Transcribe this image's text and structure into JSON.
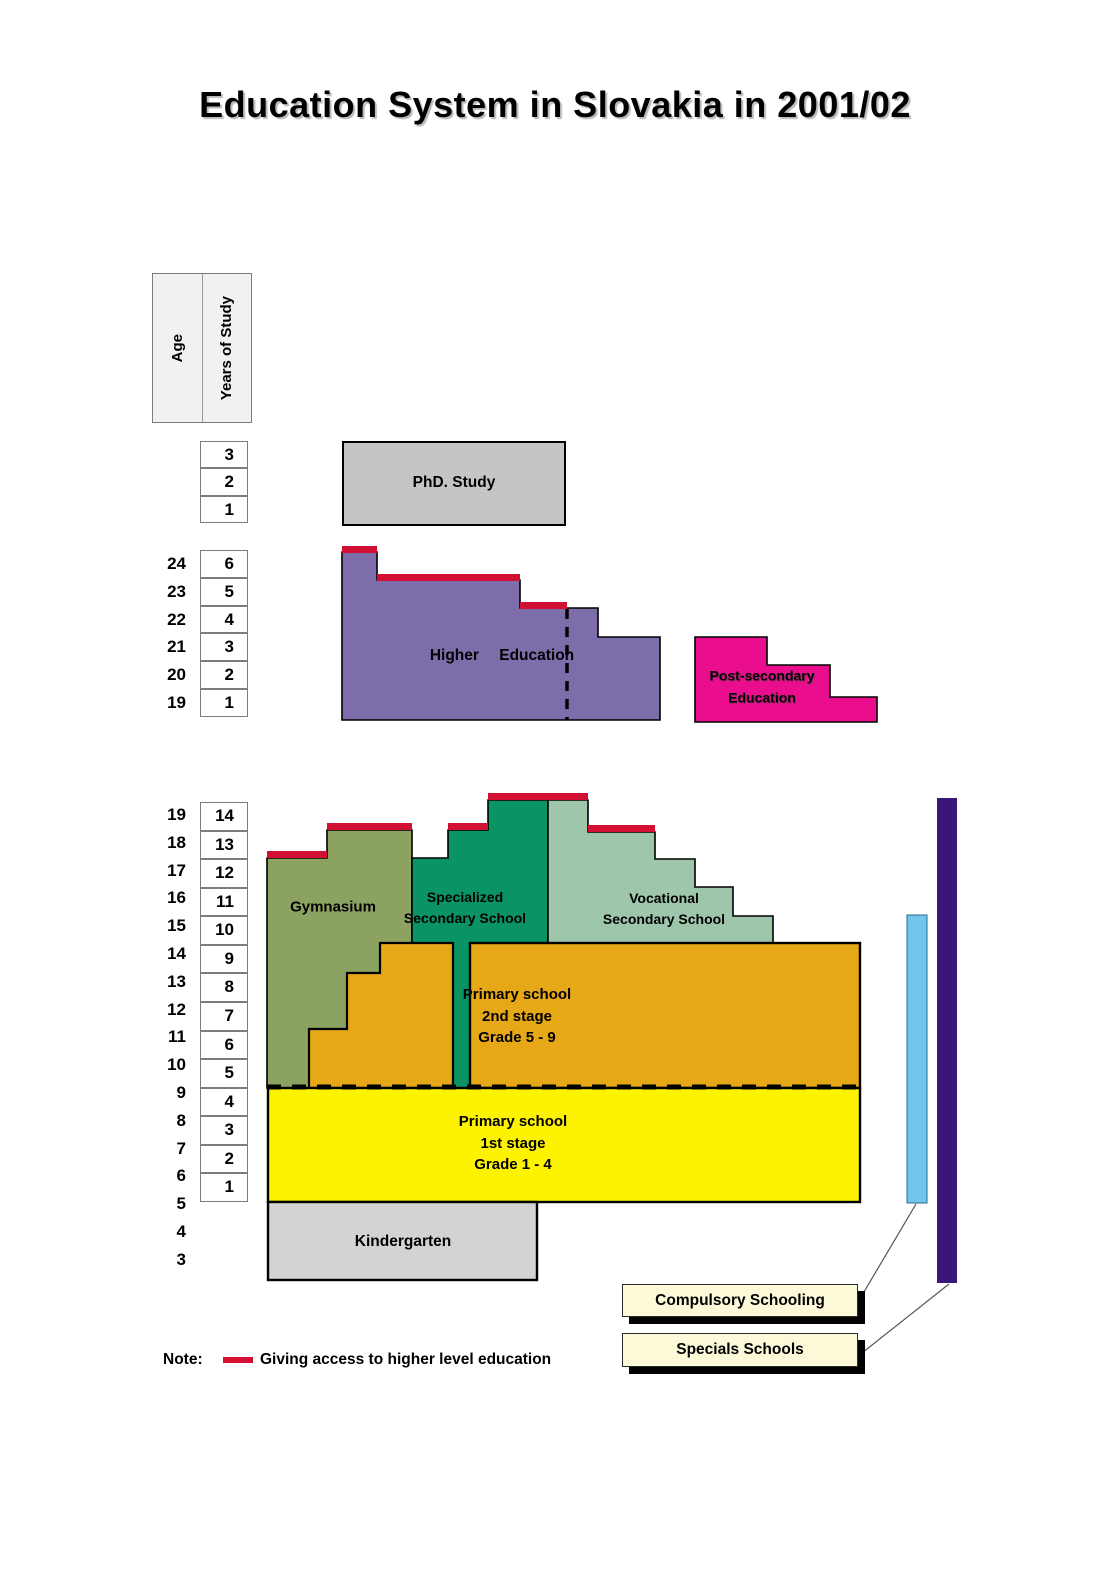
{
  "title": "Education System in Slovakia in 2001/02",
  "axis": {
    "header": {
      "age": "Age",
      "years": "Years of Study"
    },
    "phd_years": [
      "3",
      "2",
      "1"
    ],
    "upper_ages": [
      "24",
      "23",
      "22",
      "21",
      "20",
      "19"
    ],
    "upper_years": [
      "6",
      "5",
      "4",
      "3",
      "2",
      "1"
    ],
    "lower_ages": [
      "19",
      "18",
      "17",
      "16",
      "15",
      "14",
      "13",
      "12",
      "11",
      "10",
      "9",
      "8",
      "7",
      "6",
      "5",
      "4",
      "3"
    ],
    "lower_years": [
      "14",
      "13",
      "12",
      "11",
      "10",
      "9",
      "8",
      "7",
      "6",
      "5",
      "4",
      "3",
      "2",
      "1"
    ]
  },
  "blocks": {
    "phd": "PhD. Study",
    "higher_education": "Higher Education",
    "post_secondary": [
      "Post-secondary",
      "Education"
    ],
    "gymnasium": "Gymnasium",
    "specialized": [
      "Specialized",
      "Secondary School"
    ],
    "vocational": [
      "Vocational",
      "Secondary School"
    ],
    "primary_2nd": [
      "Primary school",
      "2nd stage",
      "Grade 5 - 9"
    ],
    "primary_1st": [
      "Primary school",
      "1st stage",
      "Grade 1 - 4"
    ],
    "kindergarten": "Kindergarten",
    "compulsory": "Compulsory Schooling",
    "specials": "Specials Schools"
  },
  "note": {
    "label": "Note:",
    "legend": "Giving access to higher level education"
  },
  "palette": {
    "higher_education": "#7d6daa",
    "access_red": "#d21033",
    "post_secondary": "#ea0e8e",
    "gymnasium": "#8ca261",
    "specialized": "#0a9464",
    "vocational": "#9dc6ab",
    "primary_2nd": "#e6a817",
    "primary_1st": "#fdf300",
    "kindergarten": "#d3d3d3",
    "phd": "#c5c5c5",
    "compulsory_bar": "#70c6ec",
    "specials_bar": "#381778",
    "legend_box": "#fcf9d9"
  }
}
